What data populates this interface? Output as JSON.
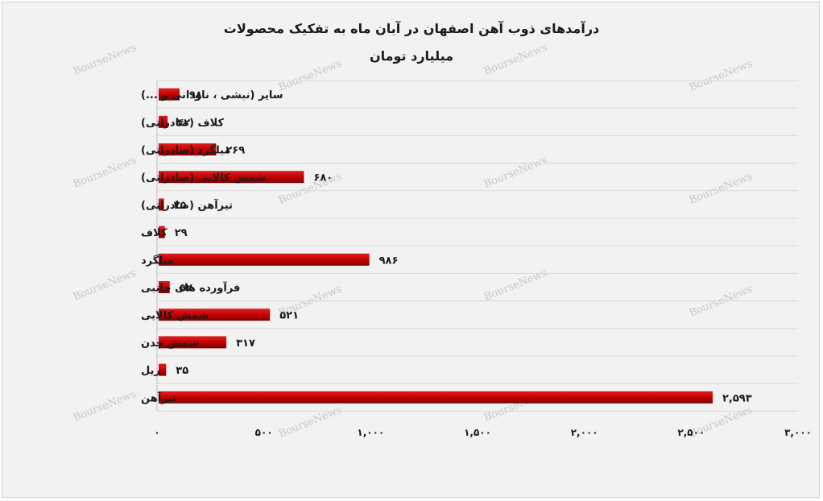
{
  "chart_data": {
    "type": "bar",
    "orientation": "horizontal",
    "title": "درآمدهای ذوب آهن اصفهان در آبان ماه به تفکیک محصولات",
    "subtitle": "میلیارد تومان",
    "categories": [
      "سایر (نبشی ، ناودانی و ...)",
      "کلاف (صادراتی)",
      "میلگرد (صادراتی)",
      "شمش کالایی (صادراتی)",
      "تیرآهن (صادراتی)",
      "کلاف",
      "میلگرد",
      "فرآورده های جانبی",
      "شمش کالایی",
      "شمش چدن",
      "ریل",
      "تیرآهن"
    ],
    "values": [
      98,
      42,
      269,
      680,
      25,
      29,
      986,
      52,
      521,
      317,
      35,
      2593
    ],
    "value_labels": [
      "۹۸",
      "۴۲",
      "۲۶۹",
      "۶۸۰",
      "۲۵",
      "۲۹",
      "۹۸۶",
      "۵۲",
      "۵۲۱",
      "۳۱۷",
      "۳۵",
      "۲,۵۹۳"
    ],
    "xlim": [
      0,
      3000
    ],
    "x_ticks": [
      0,
      500,
      1000,
      1500,
      2000,
      2500,
      3000
    ],
    "x_tick_labels": [
      "۰",
      "۵۰۰",
      "۱,۰۰۰",
      "۱,۵۰۰",
      "۲,۰۰۰",
      "۲,۵۰۰",
      "۳,۰۰۰"
    ],
    "grid": "horizontal",
    "legend": "none",
    "bar_color": "#c00000",
    "bar_color_dark": "#7a0000"
  },
  "watermark": "BourseNews"
}
